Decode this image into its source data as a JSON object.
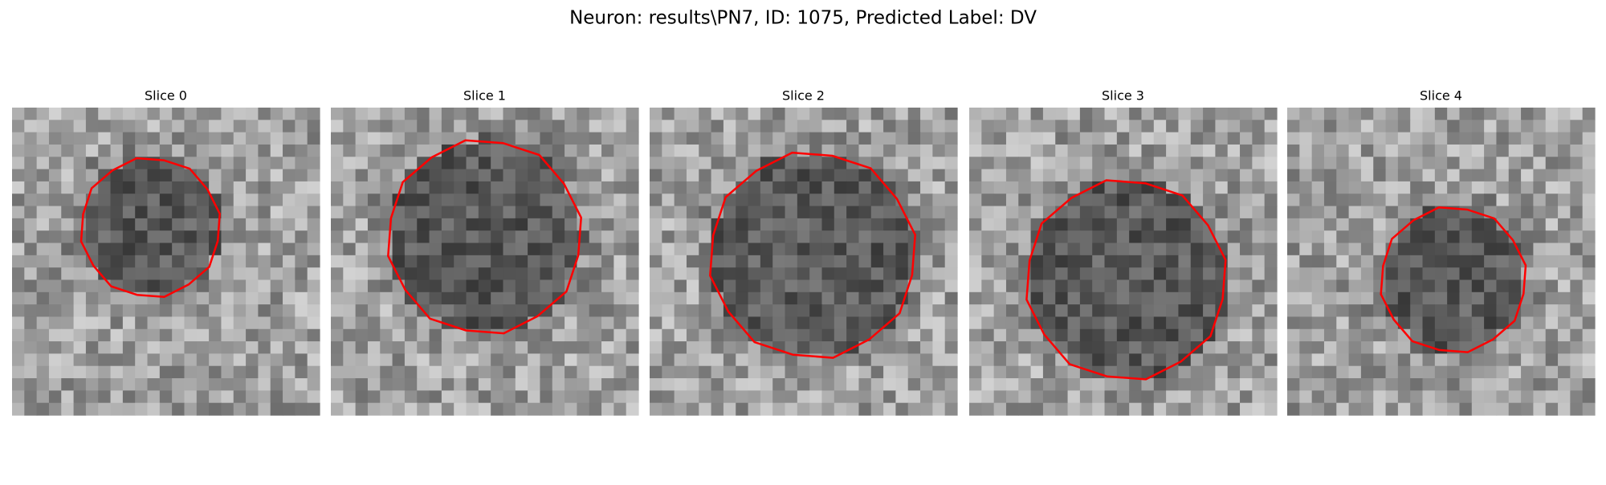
{
  "title": "Neuron: results\\PN7, ID: 1075, Predicted Label: DV",
  "panels": [
    {
      "title": "Slice 0"
    },
    {
      "title": "Slice 1"
    },
    {
      "title": "Slice 2"
    },
    {
      "title": "Slice 3"
    },
    {
      "title": "Slice 4"
    }
  ]
}
